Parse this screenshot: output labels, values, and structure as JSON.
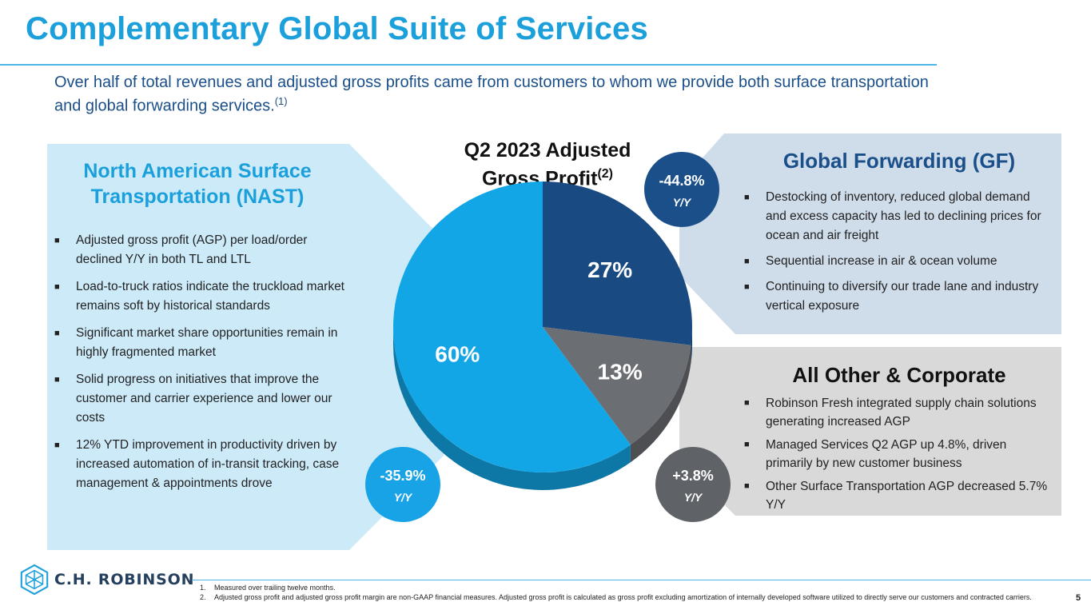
{
  "title": "Complementary Global Suite of Services",
  "subtitle": "Over half of total revenues and adjusted gross profits came from customers to whom we provide both surface transportation and global forwarding services.",
  "subtitle_ref": "(1)",
  "nast": {
    "title": "North American Surface Transportation (NAST)",
    "bullets": [
      "Adjusted gross profit (AGP) per load/order declined Y/Y in both TL and LTL",
      "Load-to-truck ratios indicate the truckload market remains soft by historical standards",
      "Significant market share opportunities remain in highly fragmented market",
      "Solid progress on initiatives that improve the customer and carrier experience and lower our costs",
      "12% YTD improvement in productivity driven by increased automation of in-transit tracking, case management & appointments drove"
    ],
    "badge": {
      "value": "-35.9%",
      "label": "Y/Y"
    }
  },
  "gf": {
    "title": "Global Forwarding (GF)",
    "bullets": [
      "Destocking of inventory, reduced global demand and excess capacity has led to declining prices for ocean and air freight",
      "Sequential increase in air & ocean volume",
      "Continuing to diversify our trade lane and industry vertical exposure"
    ],
    "badge": {
      "value": "-44.8%",
      "label": "Y/Y"
    }
  },
  "other": {
    "title": "All Other & Corporate",
    "bullets": [
      "Robinson Fresh integrated supply chain solutions generating increased AGP",
      "Managed Services Q2 AGP up 4.8%, driven primarily by new customer business",
      "Other Surface Transportation AGP decreased 5.7% Y/Y"
    ],
    "badge": {
      "value": "+3.8%",
      "label": "Y/Y"
    }
  },
  "chart_data": {
    "type": "pie",
    "title": "Q2 2023 Adjusted Gross Profit",
    "title_ref": "(2)",
    "slices": [
      {
        "value": 27,
        "label": "27%",
        "color": "#1a4a82"
      },
      {
        "value": 13,
        "label": "13%",
        "color": "#6b6e72"
      },
      {
        "value": 60,
        "label": "60%",
        "color": "#12a6e6"
      }
    ]
  },
  "colors": {
    "accent": "#1ba0dc",
    "navy": "#1b4f8a",
    "nast_bg": "#cdeaf9",
    "gf_bg": "#cfdcea",
    "other_bg": "#d9d9d9",
    "gray_badge": "#5f6368"
  },
  "logo": {
    "text": "C.H. ROBINSON",
    "icon": "chr-hexagon-icon"
  },
  "footnotes": [
    {
      "num": "1.",
      "text": "Measured over trailing twelve months."
    },
    {
      "num": "2.",
      "text": "Adjusted gross profit and adjusted gross profit margin are non-GAAP financial measures. Adjusted gross profit is calculated as gross profit excluding amortization of internally developed software utilized to directly serve our customers and contracted carriers."
    }
  ],
  "page_number": "5"
}
